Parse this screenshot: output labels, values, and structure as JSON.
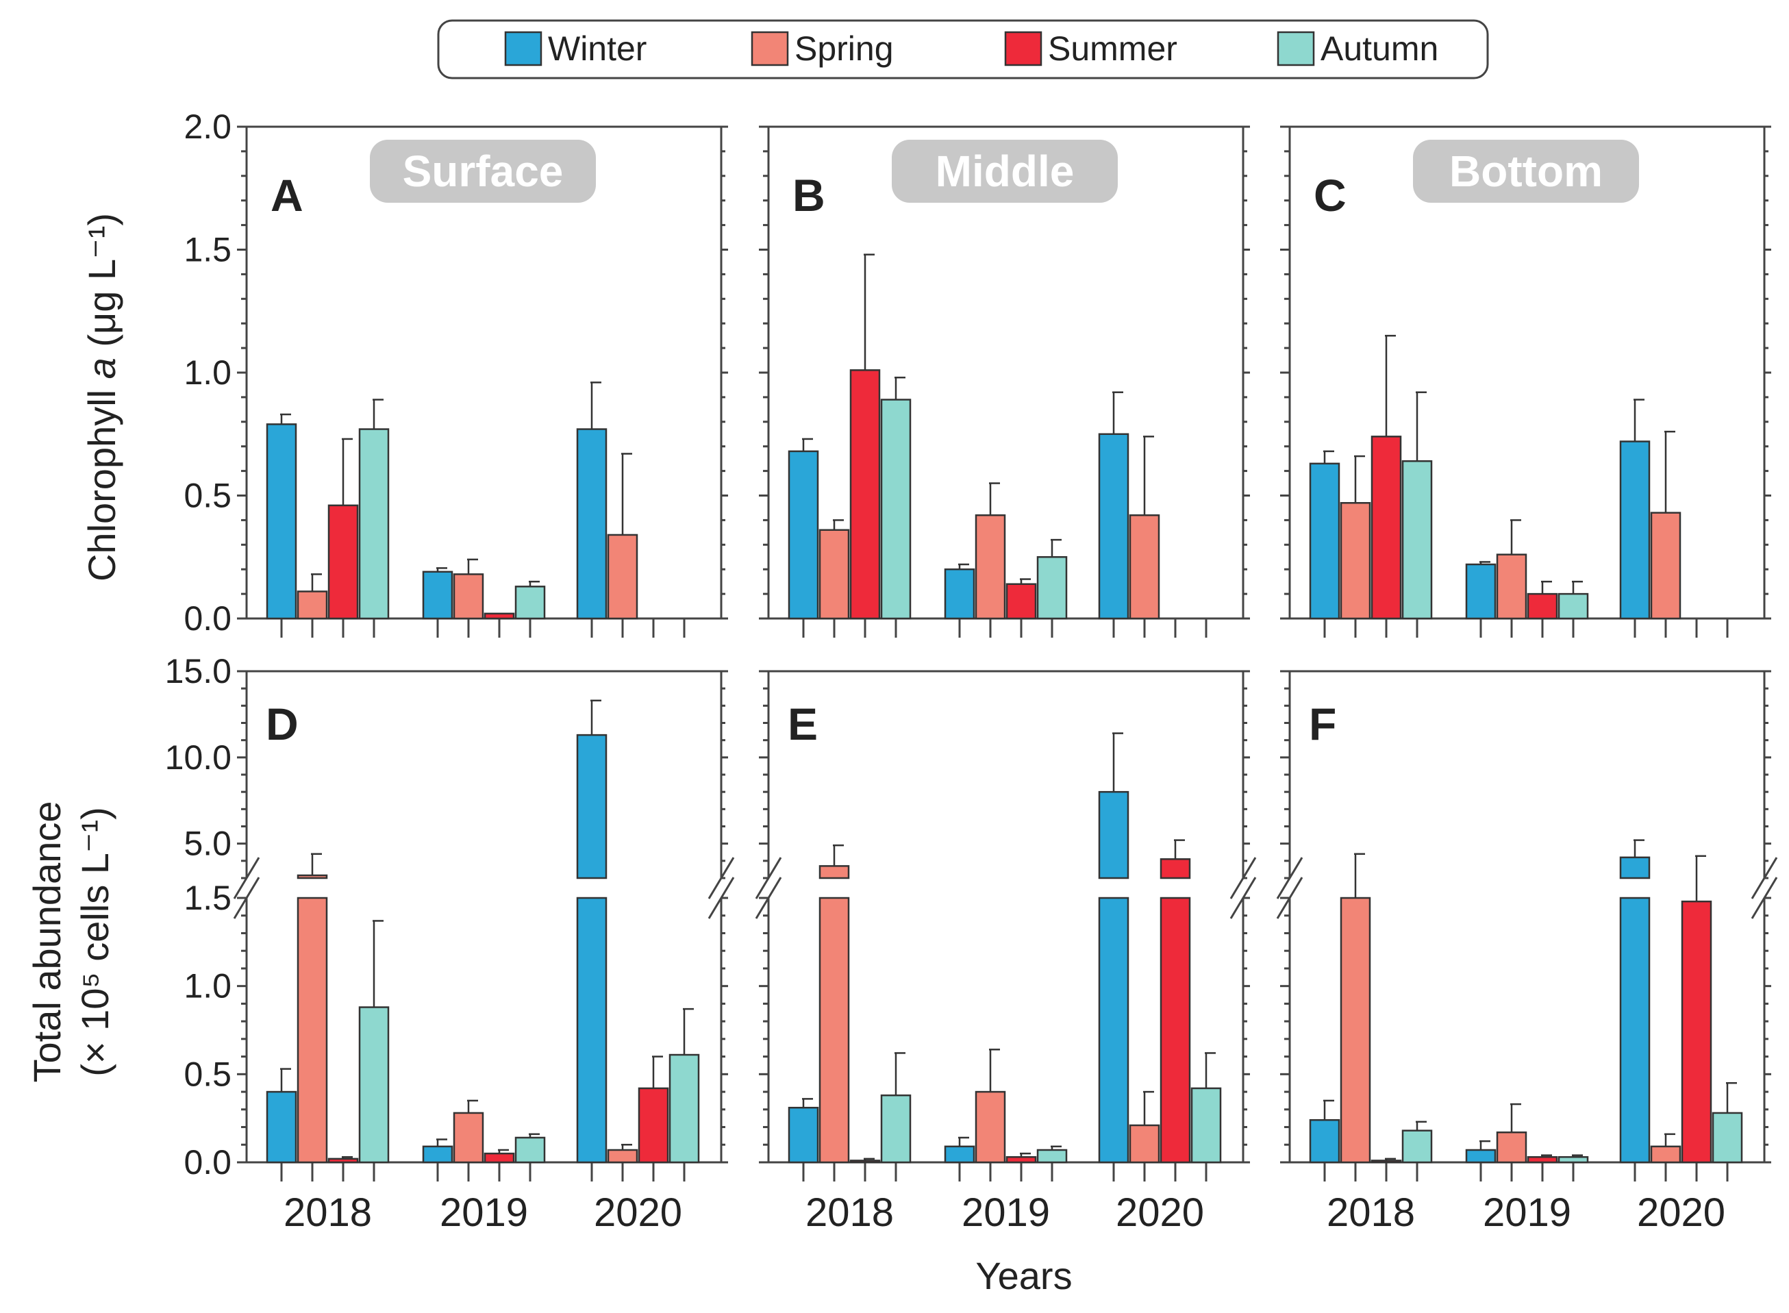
{
  "colors": {
    "Winter": "#2aa6d8",
    "Spring": "#f28576",
    "Summer": "#ee2a3a",
    "Autumn": "#8ed8cf",
    "depth_label_bg": "#c8c8c8",
    "axis": "#444444"
  },
  "legend": [
    "Winter",
    "Spring",
    "Summer",
    "Autumn"
  ],
  "seasons": [
    "Winter",
    "Spring",
    "Summer",
    "Autumn"
  ],
  "years": [
    "2018",
    "2019",
    "2020"
  ],
  "x_axis_title": "Years",
  "top_y_axis": {
    "title_prefix": "Chlorophyll ",
    "title_italic": "a",
    "title_suffix": " (μg L⁻¹)",
    "ticks": [
      "0.0",
      "0.5",
      "1.0",
      "1.5",
      "2.0"
    ]
  },
  "bottom_y_axis": {
    "title_line1": "Total abundance",
    "title_line2": "(× 10⁵ cells L⁻¹)",
    "ticks_lower": [
      "0.0",
      "0.5",
      "1.0",
      "1.5"
    ],
    "ticks_upper": [
      "5.0",
      "10.0",
      "15.0"
    ]
  },
  "chart_data": [
    {
      "panel": "A",
      "depth_label": "Surface",
      "type": "bar",
      "ylim": [
        0,
        2.0
      ],
      "categories": [
        "2018",
        "2019",
        "2020"
      ],
      "series": [
        {
          "name": "Winter",
          "values": [
            0.79,
            0.19,
            0.77
          ],
          "errors": [
            0.04,
            0.015,
            0.19
          ]
        },
        {
          "name": "Spring",
          "values": [
            0.11,
            0.18,
            0.34
          ],
          "errors": [
            0.07,
            0.06,
            0.33
          ]
        },
        {
          "name": "Summer",
          "values": [
            0.46,
            0.02,
            null
          ],
          "errors": [
            0.27,
            0.0,
            null
          ]
        },
        {
          "name": "Autumn",
          "values": [
            0.77,
            0.13,
            null
          ],
          "errors": [
            0.12,
            0.02,
            null
          ]
        }
      ]
    },
    {
      "panel": "B",
      "depth_label": "Middle",
      "type": "bar",
      "ylim": [
        0,
        2.0
      ],
      "categories": [
        "2018",
        "2019",
        "2020"
      ],
      "series": [
        {
          "name": "Winter",
          "values": [
            0.68,
            0.2,
            0.75
          ],
          "errors": [
            0.05,
            0.02,
            0.17
          ]
        },
        {
          "name": "Spring",
          "values": [
            0.36,
            0.42,
            0.42
          ],
          "errors": [
            0.04,
            0.13,
            0.32
          ]
        },
        {
          "name": "Summer",
          "values": [
            1.01,
            0.14,
            null
          ],
          "errors": [
            0.47,
            0.02,
            null
          ]
        },
        {
          "name": "Autumn",
          "values": [
            0.89,
            0.25,
            null
          ],
          "errors": [
            0.09,
            0.07,
            null
          ]
        }
      ]
    },
    {
      "panel": "C",
      "depth_label": "Bottom",
      "type": "bar",
      "ylim": [
        0,
        2.0
      ],
      "categories": [
        "2018",
        "2019",
        "2020"
      ],
      "series": [
        {
          "name": "Winter",
          "values": [
            0.63,
            0.22,
            0.72
          ],
          "errors": [
            0.05,
            0.01,
            0.17
          ]
        },
        {
          "name": "Spring",
          "values": [
            0.47,
            0.26,
            0.43
          ],
          "errors": [
            0.19,
            0.14,
            0.33
          ]
        },
        {
          "name": "Summer",
          "values": [
            0.74,
            0.1,
            null
          ],
          "errors": [
            0.41,
            0.05,
            null
          ]
        },
        {
          "name": "Autumn",
          "values": [
            0.64,
            0.1,
            null
          ],
          "errors": [
            0.28,
            0.05,
            null
          ]
        }
      ]
    },
    {
      "panel": "D",
      "type": "bar",
      "ylim": [
        0,
        15.0
      ],
      "axis_break": [
        1.5,
        3.0
      ],
      "categories": [
        "2018",
        "2019",
        "2020"
      ],
      "series": [
        {
          "name": "Winter",
          "values": [
            0.4,
            0.09,
            11.3
          ],
          "errors": [
            0.13,
            0.04,
            2.0
          ]
        },
        {
          "name": "Spring",
          "values": [
            3.0,
            0.28,
            0.07
          ],
          "errors": [
            1.4,
            0.07,
            0.03
          ]
        },
        {
          "name": "Summer",
          "values": [
            0.02,
            0.05,
            0.42
          ],
          "errors": [
            0.01,
            0.02,
            0.18
          ]
        },
        {
          "name": "Autumn",
          "values": [
            0.88,
            0.14,
            0.61
          ],
          "errors": [
            0.49,
            0.02,
            0.26
          ]
        }
      ]
    },
    {
      "panel": "E",
      "type": "bar",
      "ylim": [
        0,
        15.0
      ],
      "axis_break": [
        1.5,
        3.0
      ],
      "categories": [
        "2018",
        "2019",
        "2020"
      ],
      "series": [
        {
          "name": "Winter",
          "values": [
            0.31,
            0.09,
            8.0
          ],
          "errors": [
            0.05,
            0.05,
            3.4
          ]
        },
        {
          "name": "Spring",
          "values": [
            3.7,
            0.4,
            0.21
          ],
          "errors": [
            1.2,
            0.24,
            0.19
          ]
        },
        {
          "name": "Summer",
          "values": [
            0.01,
            0.03,
            4.1
          ],
          "errors": [
            0.01,
            0.02,
            1.1
          ]
        },
        {
          "name": "Autumn",
          "values": [
            0.38,
            0.07,
            0.42
          ],
          "errors": [
            0.24,
            0.02,
            0.2
          ]
        }
      ]
    },
    {
      "panel": "F",
      "type": "bar",
      "ylim": [
        0,
        15.0
      ],
      "axis_break": [
        1.5,
        3.0
      ],
      "categories": [
        "2018",
        "2019",
        "2020"
      ],
      "series": [
        {
          "name": "Winter",
          "values": [
            0.24,
            0.07,
            4.2
          ],
          "errors": [
            0.11,
            0.05,
            1.0
          ]
        },
        {
          "name": "Spring",
          "values": [
            1.5,
            0.17,
            0.09
          ],
          "errors": [
            2.9,
            0.16,
            0.07
          ]
        },
        {
          "name": "Summer",
          "values": [
            0.01,
            0.03,
            1.48
          ],
          "errors": [
            0.01,
            0.01,
            2.8
          ]
        },
        {
          "name": "Autumn",
          "values": [
            0.18,
            0.03,
            0.28
          ],
          "errors": [
            0.05,
            0.01,
            0.17
          ]
        }
      ]
    }
  ]
}
